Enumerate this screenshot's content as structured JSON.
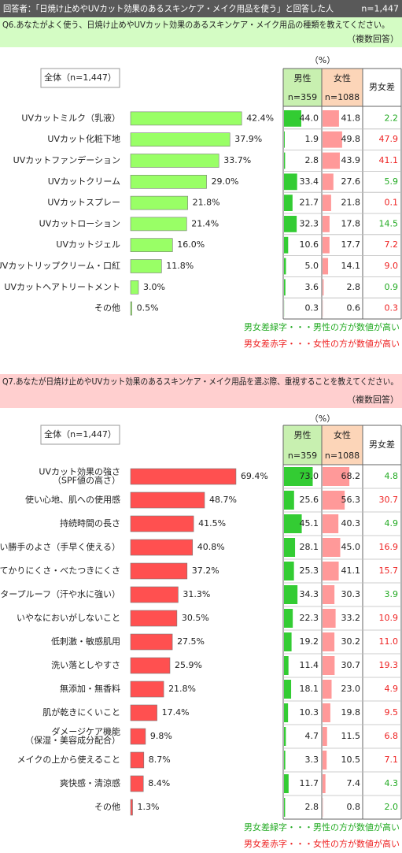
{
  "header": {
    "title": "回答者：「日焼け止めやUVカット効果のあるスキンケア・メイク用品を使う」と回答した人",
    "n": "n=1,447"
  },
  "male_bar_color": "#33cc33",
  "female_bar_color": "#ff9999",
  "male_higher_color": "#22aa22",
  "female_higher_color": "#ee2222",
  "sections": [
    {
      "question": "Q6.あなたがよく使う、日焼け止めやUVカット効果のあるスキンケア・メイク用品の種類を教えてください。",
      "note": "（複数回答）",
      "unit": "（%）",
      "overall_label": "全体（n=1,447）",
      "header_color": "#d4fcc4",
      "bar_color": "#99ff66",
      "columns": {
        "male": "男性",
        "male_n": "n=359",
        "female": "女性",
        "female_n": "n=1088",
        "diff": "男女差"
      },
      "categories": [
        "UVカットミルク（乳液）",
        "UVカット化粧下地",
        "UVカットファンデーション",
        "UVカットクリーム",
        "UVカットスプレー",
        "UVカットローション",
        "UVカットジェル",
        "UVカットリップクリーム・口紅",
        "UVカットヘアトリートメント",
        "その他"
      ],
      "overall": {
        "values": [
          42.4,
          37.9,
          33.7,
          29.0,
          21.8,
          21.4,
          16.0,
          11.8,
          3.0,
          0.5
        ],
        "value_labels": [
          "42.4%",
          "37.9%",
          "33.7%",
          "29.0%",
          "21.8%",
          "21.4%",
          "16.0%",
          "11.8%",
          "3.0%",
          "0.5%"
        ]
      },
      "male": {
        "values": [
          44.0,
          1.9,
          2.8,
          33.4,
          21.7,
          32.3,
          10.6,
          5.0,
          3.6,
          0.3
        ],
        "value_labels": [
          "44.0",
          "1.9",
          "2.8",
          "33.4",
          "21.7",
          "32.3",
          "10.6",
          "5.0",
          "3.6",
          "0.3"
        ]
      },
      "female": {
        "values": [
          41.8,
          49.8,
          43.9,
          27.6,
          21.8,
          17.8,
          17.7,
          14.1,
          2.8,
          0.6
        ],
        "value_labels": [
          "41.8",
          "49.8",
          "43.9",
          "27.6",
          "21.8",
          "17.8",
          "17.7",
          "14.1",
          "2.8",
          "0.6"
        ]
      },
      "diff": {
        "values": [
          2.2,
          47.9,
          41.1,
          5.9,
          0.1,
          14.5,
          7.2,
          9.0,
          0.9,
          0.3
        ],
        "value_labels": [
          "2.2",
          "47.9",
          "41.1",
          "5.9",
          "0.1",
          "14.5",
          "7.2",
          "9.0",
          "0.9",
          "0.3"
        ]
      },
      "legend": [
        "男女差緑字・・・男性の方が数値が高い",
        "男女差赤字・・・女性の方が数値が高い"
      ]
    },
    {
      "question": "Q7.あなたが日焼け止めやUVカット効果のあるスキンケア・メイク用品を選ぶ際、重視することを教えてください。",
      "note": "（複数回答）",
      "unit": "（%）",
      "overall_label": "全体（n=1,447）",
      "header_color": "#ffcfcf",
      "bar_color": "#ff5050",
      "columns": {
        "male": "男性",
        "male_n": "n=359",
        "female": "女性",
        "female_n": "n=1088",
        "diff": "男女差"
      },
      "categories": [
        "UVカット効果の強さ\n（SPF値の高さ）",
        "使い心地、肌への使用感",
        "持続時間の長さ",
        "使い勝手のよさ（手早く使える）",
        "てかりにくさ・べたつきにくさ",
        "ウォータープルーフ（汗や水に強い）",
        "いやなにおいがしないこと",
        "低刺激・敏感肌用",
        "洗い落としやすさ",
        "無添加・無香料",
        "肌が乾きにくいこと",
        "ダメージケア機能\n（保湿・美容成分配合）",
        "メイクの上から使えること",
        "爽快感・清涼感",
        "その他"
      ],
      "overall": {
        "values": [
          69.4,
          48.7,
          41.5,
          40.8,
          37.2,
          31.3,
          30.5,
          27.5,
          25.9,
          21.8,
          17.4,
          9.8,
          8.7,
          8.4,
          1.3
        ],
        "value_labels": [
          "69.4%",
          "48.7%",
          "41.5%",
          "40.8%",
          "37.2%",
          "31.3%",
          "30.5%",
          "27.5%",
          "25.9%",
          "21.8%",
          "17.4%",
          "9.8%",
          "8.7%",
          "8.4%",
          "1.3%"
        ]
      },
      "male": {
        "values": [
          73.0,
          25.6,
          45.1,
          28.1,
          25.3,
          34.3,
          22.3,
          19.2,
          11.4,
          18.1,
          10.3,
          4.7,
          3.3,
          11.7,
          2.8
        ],
        "value_labels": [
          "73.0",
          "25.6",
          "45.1",
          "28.1",
          "25.3",
          "34.3",
          "22.3",
          "19.2",
          "11.4",
          "18.1",
          "10.3",
          "4.7",
          "3.3",
          "11.7",
          "2.8"
        ]
      },
      "female": {
        "values": [
          68.2,
          56.3,
          40.3,
          45.0,
          41.1,
          30.3,
          33.2,
          30.2,
          30.7,
          23.0,
          19.8,
          11.5,
          10.5,
          7.4,
          0.8
        ],
        "value_labels": [
          "68.2",
          "56.3",
          "40.3",
          "45.0",
          "41.1",
          "30.3",
          "33.2",
          "30.2",
          "30.7",
          "23.0",
          "19.8",
          "11.5",
          "10.5",
          "7.4",
          "0.8"
        ]
      },
      "diff": {
        "values": [
          4.8,
          30.7,
          4.9,
          16.9,
          15.7,
          3.9,
          10.9,
          11.0,
          19.3,
          4.9,
          9.5,
          6.8,
          7.1,
          4.3,
          2.0
        ],
        "value_labels": [
          "4.8",
          "30.7",
          "4.9",
          "16.9",
          "15.7",
          "3.9",
          "10.9",
          "11.0",
          "19.3",
          "4.9",
          "9.5",
          "6.8",
          "7.1",
          "4.3",
          "2.0"
        ]
      },
      "legend": [
        "男女差緑字・・・男性の方が数値が高い",
        "男女差赤字・・・女性の方が数値が高い"
      ]
    }
  ]
}
